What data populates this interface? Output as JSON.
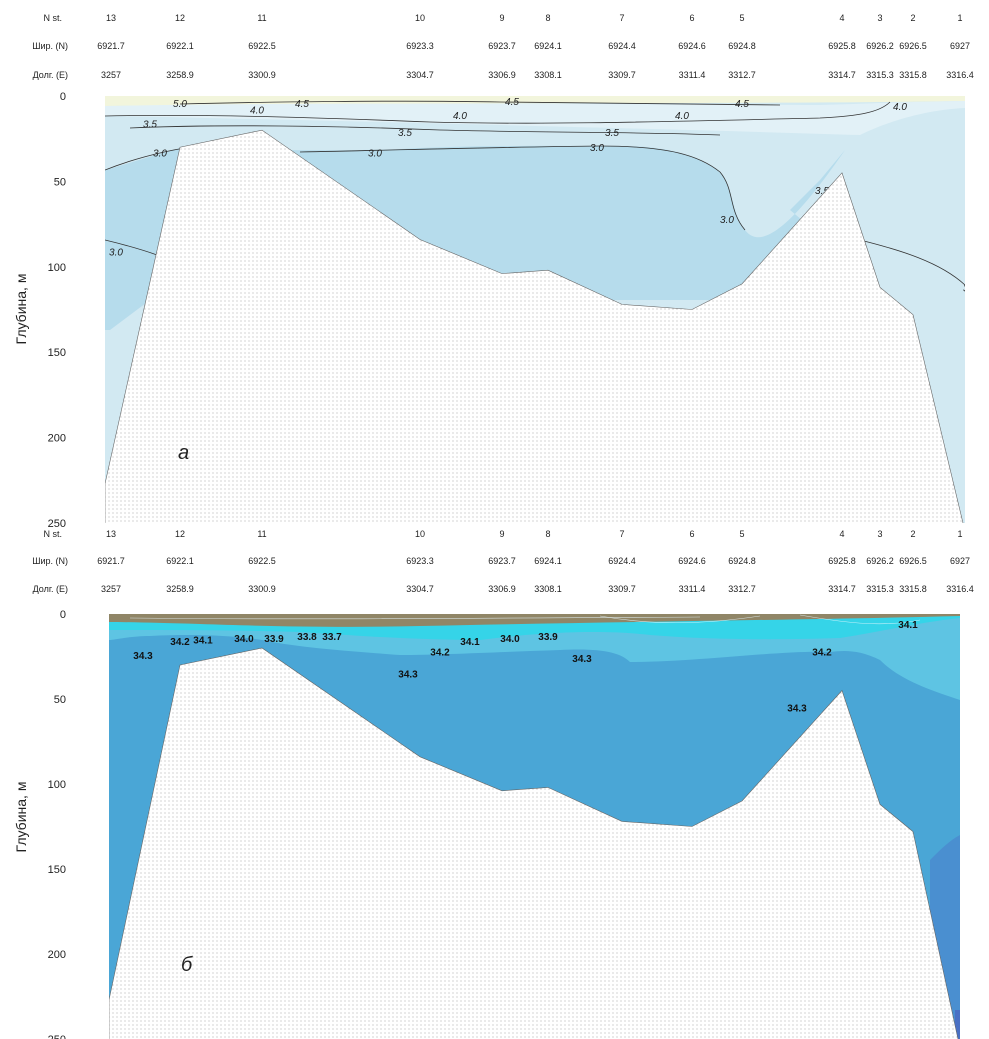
{
  "header_labels": {
    "station": "N st.",
    "lat": "Шир. (N)",
    "lon": "Долг. (E)"
  },
  "stations": [
    {
      "n": "13",
      "lat": "6921.7",
      "lon": "3257"
    },
    {
      "n": "12",
      "lat": "6922.1",
      "lon": "3258.9"
    },
    {
      "n": "11",
      "lat": "6922.5",
      "lon": "3300.9"
    },
    {
      "n": "10",
      "lat": "6923.3",
      "lon": "3304.7"
    },
    {
      "n": "9",
      "lat": "6923.7",
      "lon": "3306.9"
    },
    {
      "n": "8",
      "lat": "6924.1",
      "lon": "3308.1"
    },
    {
      "n": "7",
      "lat": "6924.4",
      "lon": "3309.7"
    },
    {
      "n": "6",
      "lat": "6924.6",
      "lon": "3311.4"
    },
    {
      "n": "5",
      "lat": "6924.8",
      "lon": "3312.7"
    },
    {
      "n": "4",
      "lat": "6925.8",
      "lon": "3314.7"
    },
    {
      "n": "3",
      "lat": "6926.2",
      "lon": "3315.3"
    },
    {
      "n": "2",
      "lat": "6926.5",
      "lon": "3315.8"
    },
    {
      "n": "1",
      "lat": "6927",
      "lon": "3316.4"
    }
  ],
  "chart_data": [
    {
      "type": "contour",
      "panel_label": "а",
      "ylabel": "Глубина, м",
      "y_ticks": [
        0,
        50,
        100,
        150,
        200,
        250
      ],
      "ylim": [
        250,
        0
      ],
      "seabed_depth_m": [
        227,
        30,
        20,
        84,
        104,
        102,
        122,
        125,
        110,
        45,
        112,
        128,
        250
      ],
      "colors": {
        "warm": "#f2f5dc",
        "mid": "#e2f1f7",
        "light": "#d2e9f2",
        "deep": "#b6dcec",
        "line": "#333333"
      },
      "contour_labels": [
        {
          "text": "5.0",
          "station": "12",
          "depth_m": 4
        },
        {
          "text": "4.0",
          "station": "11",
          "depth_m": 8
        },
        {
          "text": "4.5",
          "station": "11",
          "depth_m": 4
        },
        {
          "text": "4.0",
          "station": "10",
          "depth_m": 11
        },
        {
          "text": "4.5",
          "station": "9",
          "depth_m": 3
        },
        {
          "text": "4.0",
          "station": "6",
          "depth_m": 11
        },
        {
          "text": "4.5",
          "station": "5",
          "depth_m": 4
        },
        {
          "text": "4.0",
          "station": "3",
          "depth_m": 6
        },
        {
          "text": "3.5",
          "station": "12",
          "depth_m": 16
        },
        {
          "text": "3.5",
          "station": "10",
          "depth_m": 21
        },
        {
          "text": "3.5",
          "station": "6",
          "depth_m": 21
        },
        {
          "text": "3.0",
          "station": "12",
          "depth_m": 33
        },
        {
          "text": "3.0",
          "station": "10",
          "depth_m": 33
        },
        {
          "text": "3.0",
          "station": "7",
          "depth_m": 30
        },
        {
          "text": "3.5",
          "station": "4",
          "depth_m": 55
        },
        {
          "text": "3.0",
          "station": "5",
          "depth_m": 72
        },
        {
          "text": "3.0",
          "station": "13",
          "depth_m": 91
        },
        {
          "text": "3.5",
          "station": "1",
          "depth_m": 112
        }
      ]
    },
    {
      "type": "contour",
      "panel_label": "б",
      "ylabel": "Глубина, м",
      "y_ticks": [
        0,
        50,
        100,
        150,
        200,
        250
      ],
      "ylim": [
        250,
        0
      ],
      "seabed_depth_m": [
        227,
        30,
        20,
        84,
        104,
        102,
        122,
        125,
        110,
        45,
        112,
        128,
        250
      ],
      "colors": {
        "surface_brown": "#a07850",
        "cyan": "#35d4e8",
        "light": "#5ec4e3",
        "mid": "#4aa6d6",
        "deep": "#4a8fd0",
        "deepest": "#4a70c4"
      },
      "contour_labels": [
        {
          "text": "34.3",
          "station": "13",
          "depth_m": 24
        },
        {
          "text": "34.2",
          "station": "12",
          "depth_m": 16
        },
        {
          "text": "34.1",
          "station": "12",
          "depth_m": 15
        },
        {
          "text": "34.0",
          "station": "11",
          "depth_m": 14
        },
        {
          "text": "33.9",
          "station": "11",
          "depth_m": 14
        },
        {
          "text": "33.8",
          "station": "11",
          "depth_m": 13
        },
        {
          "text": "33.7",
          "station": "11",
          "depth_m": 13
        },
        {
          "text": "34.3",
          "station": "10",
          "depth_m": 35
        },
        {
          "text": "34.2",
          "station": "10",
          "depth_m": 22
        },
        {
          "text": "34.1",
          "station": "9",
          "depth_m": 16
        },
        {
          "text": "34.0",
          "station": "9",
          "depth_m": 14
        },
        {
          "text": "33.9",
          "station": "8",
          "depth_m": 13
        },
        {
          "text": "34.3",
          "station": "7",
          "depth_m": 26
        },
        {
          "text": "34.1",
          "station": "2",
          "depth_m": 6
        },
        {
          "text": "34.2",
          "station": "3",
          "depth_m": 22
        },
        {
          "text": "34.3",
          "station": "4",
          "depth_m": 55
        }
      ]
    }
  ]
}
